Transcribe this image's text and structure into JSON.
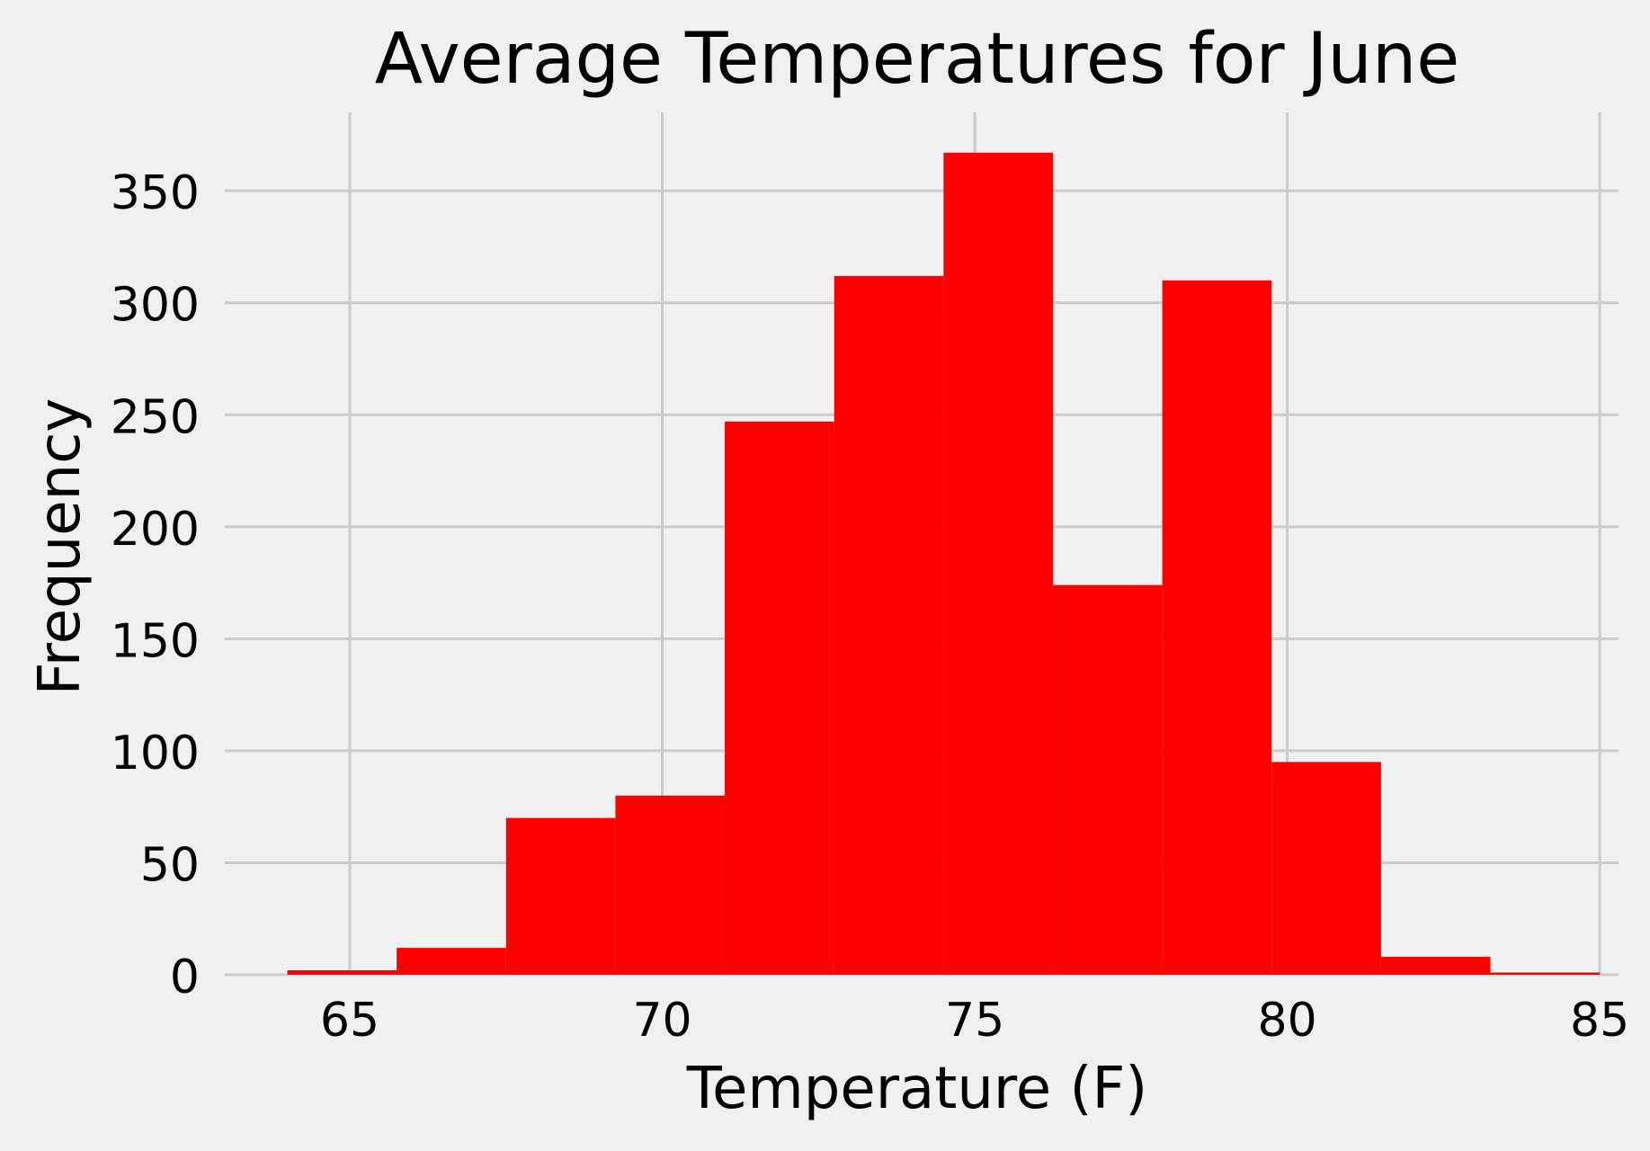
{
  "chart_data": {
    "type": "bar",
    "title": "Average Temperatures for June",
    "xlabel": "Temperature (F)",
    "ylabel": "Frequency",
    "xlim": [
      63,
      85.3
    ],
    "ylim": [
      0,
      385
    ],
    "grid": true,
    "bar_color": "#ff0000",
    "bins": [
      {
        "start": 64.0,
        "end": 65.75,
        "count": 2
      },
      {
        "start": 65.75,
        "end": 67.5,
        "count": 12
      },
      {
        "start": 67.5,
        "end": 69.25,
        "count": 70
      },
      {
        "start": 69.25,
        "end": 71.0,
        "count": 80
      },
      {
        "start": 71.0,
        "end": 72.75,
        "count": 247
      },
      {
        "start": 72.75,
        "end": 74.5,
        "count": 312
      },
      {
        "start": 74.5,
        "end": 76.25,
        "count": 367
      },
      {
        "start": 76.25,
        "end": 78.0,
        "count": 174
      },
      {
        "start": 78.0,
        "end": 79.75,
        "count": 310
      },
      {
        "start": 79.75,
        "end": 81.5,
        "count": 95
      },
      {
        "start": 81.5,
        "end": 83.25,
        "count": 8
      },
      {
        "start": 83.25,
        "end": 85.0,
        "count": 1
      }
    ],
    "x_ticks": [
      65,
      70,
      75,
      80,
      85
    ],
    "x_tick_labels": [
      "65",
      "70",
      "75",
      "80",
      "85"
    ],
    "y_ticks": [
      0,
      50,
      100,
      150,
      200,
      250,
      300,
      350
    ],
    "y_tick_labels": [
      "0",
      "50",
      "100",
      "150",
      "200",
      "250",
      "300",
      "350"
    ]
  }
}
